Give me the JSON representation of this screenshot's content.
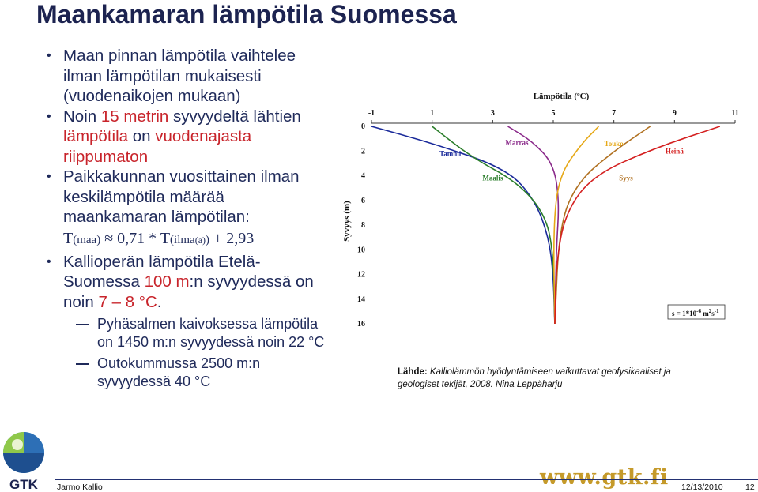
{
  "title": "Maankamaran lämpötila Suomessa",
  "bullets": {
    "b1": "Maan pinnan lämpötila vaihtelee ilman lämpötilan mukaisesti (vuodenaikojen mukaan)",
    "b2_pre": "Noin ",
    "b2_red1": "15 metrin",
    "b2_mid": " syvyydeltä lähtien ",
    "b2_red2": "lämpötila",
    "b2_mid2": " on ",
    "b2_red3": "vuodenajasta riippumaton",
    "b3": "Paikkakunnan vuosittainen ilman keskilämpötila määrää maankamaran lämpötilan:",
    "formula_a": "T",
    "formula_b": "(maa)",
    "formula_c": " ≈ 0,71 * T",
    "formula_d": "(ilma",
    "formula_e": "(a)",
    "formula_f": ")",
    "formula_g": " + 2,93",
    "b4_pre": "Kallioperän lämpötila Etelä-Suomessa ",
    "b4_red1": "100 m",
    "b4_mid": ":n syvyydessä on noin ",
    "b4_red2": "7 – 8 °C",
    "b4_end": ".",
    "sub1": "Pyhäsalmen kaivoksessa lämpötila on 1450 m:n syvyydessä noin 22 °C",
    "sub2": "Outokummussa 2500 m:n syvyydessä 40 °C"
  },
  "chart_data": {
    "type": "line",
    "title": "Lämpötila (ºC)",
    "ylabel": "Syvyys (m)",
    "x_ticks": [
      "-1",
      "1",
      "3",
      "5",
      "7",
      "9",
      "11"
    ],
    "y_ticks": [
      "0",
      "2",
      "4",
      "6",
      "8",
      "10",
      "12",
      "14",
      "16"
    ],
    "xlim": [
      -1,
      11
    ],
    "ylim": [
      0,
      16
    ],
    "annotation_a": "s = 1*10",
    "annotation_sup1": "-6",
    "annotation_b": " m",
    "annotation_sup2": "2",
    "annotation_c": "s",
    "annotation_sup3": "-1",
    "series": [
      {
        "name": "Tammi",
        "color": "#1a2a9a",
        "x": [
          -1,
          1.2,
          3.5,
          4.4,
          4.85,
          5.0,
          5.05
        ],
        "y": [
          0,
          1.5,
          3.5,
          6,
          9,
          12,
          16
        ]
      },
      {
        "name": "Maalis",
        "color": "#2a7d2a",
        "x": [
          1.0,
          2.3,
          3.8,
          4.7,
          5.0,
          5.05
        ],
        "y": [
          0,
          2.5,
          4.5,
          7,
          10,
          16
        ]
      },
      {
        "name": "Marras",
        "color": "#8a2a8a",
        "x": [
          3.5,
          4.3,
          5.0,
          5.2,
          5.1,
          5.05
        ],
        "y": [
          0,
          1.2,
          3.0,
          6,
          10,
          16
        ]
      },
      {
        "name": "Touko",
        "color": "#e6a817",
        "x": [
          6.5,
          5.9,
          5.2,
          5.0,
          5.05
        ],
        "y": [
          0,
          1.5,
          4.0,
          8,
          16
        ]
      },
      {
        "name": "Syys",
        "color": "#b07020",
        "x": [
          8.2,
          7.0,
          5.8,
          5.2,
          5.05
        ],
        "y": [
          0,
          2.0,
          4.5,
          8,
          16
        ]
      },
      {
        "name": "Heinä",
        "color": "#d42020",
        "x": [
          10.5,
          8.3,
          6.3,
          5.4,
          5.1,
          5.05
        ],
        "y": [
          0,
          1.8,
          4.0,
          7,
          11,
          16
        ]
      }
    ]
  },
  "source": {
    "label": "Lähde:",
    "text1": " Kalliolämmön hyödyntämiseen vaikuttavat geofysikaaliset ja",
    "text2": "geologiset tekijät, 2008. Nina Leppäharju"
  },
  "logo": {
    "text": "GTK"
  },
  "footer": {
    "site": "www.gtk.fi",
    "author": "Jarmo Kallio",
    "date": "12/13/2010",
    "page": "12"
  }
}
